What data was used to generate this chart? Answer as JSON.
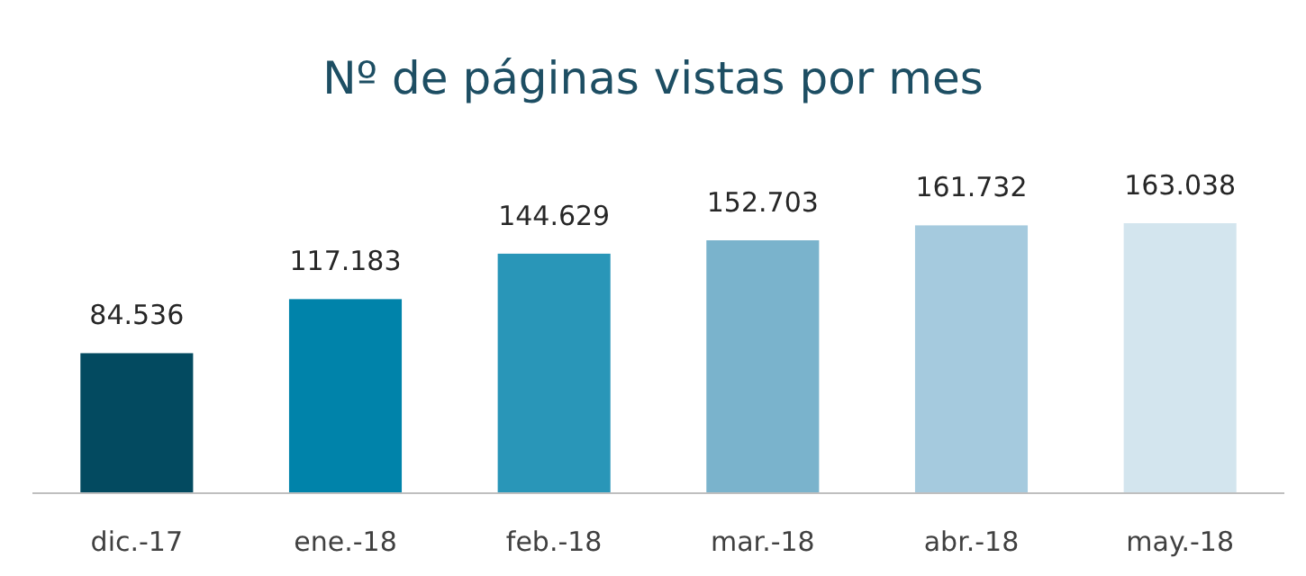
{
  "chart_data": {
    "type": "bar",
    "title": "Nº de páginas vistas por mes",
    "categories": [
      "dic.-17",
      "ene.-18",
      "feb.-18",
      "mar.-18",
      "abr.-18",
      "may.-18"
    ],
    "values": [
      84536,
      117183,
      144629,
      152703,
      161732,
      163038
    ],
    "value_labels": [
      "84.536",
      "117.183",
      "144.629",
      "152.703",
      "161.732",
      "163.038"
    ],
    "colors": [
      "#034a60",
      "#0083aa",
      "#2996b8",
      "#7ab3cc",
      "#a5cade",
      "#d3e5ee"
    ]
  }
}
